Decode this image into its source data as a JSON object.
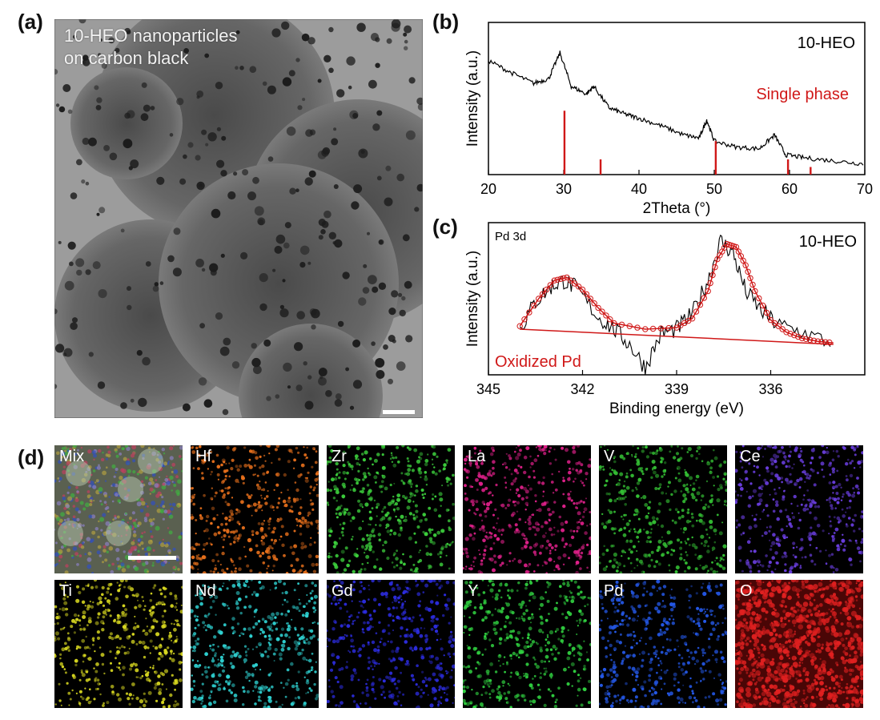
{
  "panels": {
    "a": {
      "label": "(a)",
      "caption_line1": "10-HEO nanoparticles",
      "caption_line2": "on carbon black"
    },
    "b": {
      "label": "(b)"
    },
    "c": {
      "label": "(c)"
    },
    "d": {
      "label": "(d)",
      "maps": [
        {
          "name": "Mix",
          "color": "#8aa890"
        },
        {
          "name": "Hf",
          "color": "#e8701c"
        },
        {
          "name": "Zr",
          "color": "#3ccf3c"
        },
        {
          "name": "La",
          "color": "#e0208a"
        },
        {
          "name": "V",
          "color": "#34c034"
        },
        {
          "name": "Ce",
          "color": "#6a3ee0"
        },
        {
          "name": "Ti",
          "color": "#d8d820"
        },
        {
          "name": "Nd",
          "color": "#2ed0d0"
        },
        {
          "name": "Gd",
          "color": "#2c2ce0"
        },
        {
          "name": "Y",
          "color": "#30d040"
        },
        {
          "name": "Pd",
          "color": "#2458e8"
        },
        {
          "name": "O",
          "color": "#e02020"
        }
      ]
    }
  },
  "chart_data": [
    {
      "type": "line",
      "xlabel": "2Theta (°)",
      "ylabel": "Intensity (a.u.)",
      "xlim": [
        20,
        70
      ],
      "x_ticks": [
        20,
        30,
        40,
        50,
        60,
        70
      ],
      "annotations": [
        "10-HEO",
        "Single phase"
      ],
      "series": [
        {
          "x": [
            20,
            23,
            26,
            28,
            29.5,
            31,
            33,
            34,
            36,
            38,
            40,
            43,
            46,
            48,
            49,
            50,
            53,
            56,
            58,
            59.5,
            62,
            66,
            70
          ],
          "y": [
            0.75,
            0.67,
            0.6,
            0.63,
            0.8,
            0.58,
            0.53,
            0.58,
            0.44,
            0.4,
            0.37,
            0.32,
            0.26,
            0.24,
            0.36,
            0.22,
            0.18,
            0.17,
            0.26,
            0.13,
            0.11,
            0.09,
            0.07
          ],
          "color": "#000000"
        }
      ],
      "reference_lines": {
        "x": [
          30.1,
          34.9,
          50.2,
          59.8,
          62.8
        ],
        "height": [
          0.42,
          0.1,
          0.22,
          0.1,
          0.05
        ],
        "color": "#d01818"
      }
    },
    {
      "type": "line",
      "xlabel": "Binding energy (eV)",
      "ylabel": "Intensity (a.u.)",
      "xlim": [
        345,
        333
      ],
      "x_ticks": [
        345,
        342,
        339,
        336
      ],
      "annotations": [
        "Pd 3d",
        "10-HEO",
        "Oxidized Pd"
      ],
      "series": [
        {
          "x": [
            344.0,
            343.5,
            343.0,
            342.6,
            342.2,
            341.5,
            341.0,
            340.5,
            340.0,
            339.5,
            339.0,
            338.5,
            338.0,
            337.6,
            337.2,
            336.8,
            336.3,
            335.8,
            335.0,
            334.0
          ],
          "y": [
            0.3,
            0.48,
            0.58,
            0.62,
            0.57,
            0.38,
            0.3,
            0.2,
            0.05,
            0.27,
            0.3,
            0.4,
            0.62,
            0.88,
            0.8,
            0.55,
            0.42,
            0.33,
            0.28,
            0.2
          ],
          "color": "#000000"
        },
        {
          "x": [
            344.0,
            343.4,
            342.9,
            342.5,
            342.0,
            341.5,
            341.0,
            340.0,
            339.0,
            338.5,
            338.0,
            337.7,
            337.4,
            337.1,
            336.8,
            336.5,
            336.0,
            335.5,
            335.0,
            334.5,
            334.0
          ],
          "y": [
            0.32,
            0.5,
            0.62,
            0.64,
            0.56,
            0.44,
            0.34,
            0.3,
            0.31,
            0.37,
            0.55,
            0.76,
            0.86,
            0.84,
            0.72,
            0.55,
            0.36,
            0.28,
            0.24,
            0.22,
            0.21
          ],
          "color": "#d01818",
          "marker": "circle"
        },
        {
          "x": [
            344.0,
            334.0
          ],
          "y": [
            0.3,
            0.2
          ],
          "color": "#d01818"
        }
      ]
    }
  ]
}
